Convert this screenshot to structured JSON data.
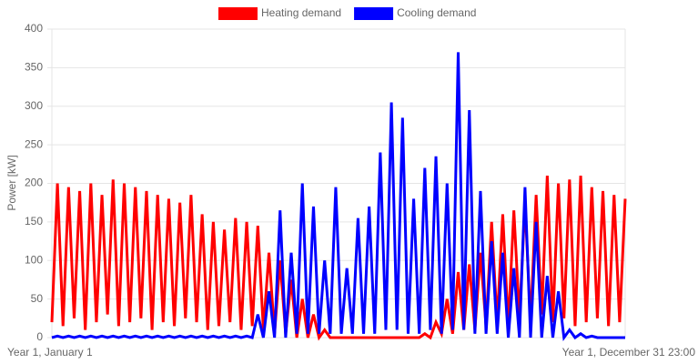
{
  "chart_data": {
    "type": "line",
    "y_label": "Power [kW]",
    "categories": [
      "Year 1, January 1",
      null,
      null,
      null,
      null,
      null,
      null,
      null,
      null,
      null,
      null,
      null,
      null,
      null,
      null,
      null,
      null,
      null,
      null,
      null,
      null,
      null,
      null,
      null,
      null,
      null,
      null,
      null,
      null,
      null,
      null,
      null,
      null,
      null,
      null,
      null,
      null,
      null,
      null,
      null,
      null,
      null,
      null,
      null,
      null,
      null,
      null,
      null,
      null,
      null,
      null,
      null,
      null,
      null,
      null,
      null,
      null,
      null,
      null,
      null,
      null,
      null,
      null,
      null,
      null,
      null,
      null,
      null,
      null,
      null,
      null,
      null,
      null,
      null,
      null,
      null,
      null,
      null,
      null,
      null,
      null,
      null,
      null,
      null,
      null,
      null,
      null,
      null,
      null,
      null,
      null,
      null,
      null,
      null,
      null,
      null,
      null,
      null,
      null,
      null,
      null,
      null,
      null,
      "Year 1, December 31 23:00"
    ],
    "series": [
      {
        "name": "Heating demand",
        "color": "#ff0000",
        "values": [
          20,
          200,
          15,
          195,
          25,
          190,
          10,
          200,
          20,
          185,
          30,
          205,
          15,
          200,
          20,
          195,
          25,
          190,
          10,
          185,
          20,
          180,
          15,
          175,
          25,
          185,
          20,
          160,
          10,
          150,
          15,
          140,
          20,
          155,
          10,
          150,
          15,
          145,
          10,
          110,
          5,
          100,
          5,
          75,
          0,
          50,
          0,
          30,
          0,
          10,
          0,
          0,
          0,
          0,
          0,
          0,
          0,
          0,
          0,
          0,
          0,
          0,
          0,
          0,
          0,
          0,
          0,
          5,
          0,
          20,
          5,
          50,
          5,
          85,
          10,
          95,
          10,
          110,
          15,
          150,
          20,
          160,
          15,
          165,
          25,
          175,
          20,
          185,
          30,
          210,
          20,
          200,
          25,
          205,
          15,
          210,
          20,
          195,
          25,
          190,
          15,
          185,
          20,
          180
        ]
      },
      {
        "name": "Cooling demand",
        "color": "#0000ff",
        "values": [
          0,
          2,
          0,
          2,
          0,
          2,
          0,
          2,
          0,
          2,
          0,
          2,
          0,
          2,
          0,
          2,
          0,
          2,
          0,
          2,
          0,
          2,
          0,
          2,
          0,
          2,
          0,
          2,
          0,
          2,
          0,
          2,
          0,
          2,
          0,
          2,
          0,
          30,
          0,
          60,
          0,
          165,
          0,
          110,
          5,
          200,
          5,
          170,
          5,
          100,
          5,
          195,
          5,
          90,
          5,
          155,
          5,
          170,
          5,
          240,
          10,
          305,
          10,
          285,
          5,
          180,
          5,
          220,
          10,
          235,
          5,
          200,
          10,
          370,
          10,
          295,
          5,
          190,
          5,
          125,
          5,
          110,
          0,
          90,
          0,
          195,
          0,
          150,
          0,
          80,
          0,
          60,
          0,
          10,
          0,
          5,
          0,
          2,
          0,
          0,
          0,
          0,
          0,
          0
        ]
      }
    ],
    "ylim": [
      0,
      400
    ],
    "yticks": [
      0,
      50,
      100,
      150,
      200,
      250,
      300,
      350,
      400
    ],
    "grid": true
  }
}
